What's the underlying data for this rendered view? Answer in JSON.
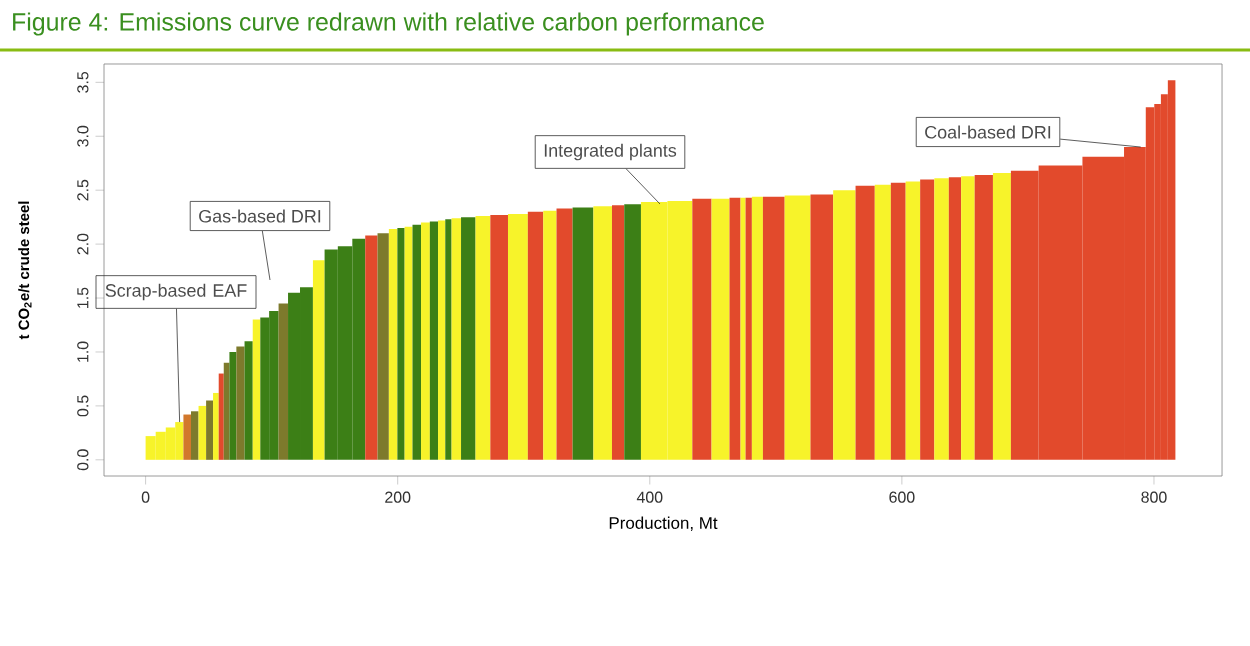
{
  "chart_data": {
    "type": "bar",
    "title": "Figure 4: Emissions curve redrawn with relative carbon performance",
    "xlabel": "Production, Mt",
    "ylabel": "t CO$_{2}$e/t crude steel",
    "x": [
      4,
      12,
      20,
      27,
      33,
      39,
      45,
      51,
      56,
      60,
      64,
      69,
      75,
      82,
      88,
      94,
      102,
      109,
      117,
      128,
      137.5,
      146.5,
      158.5,
      169.5,
      179,
      189,
      197,
      202.5,
      208.5,
      215,
      222,
      229,
      235,
      240.5,
      245,
      255.5,
      268,
      279,
      296,
      310.5,
      320.5,
      331.5,
      346,
      364.5,
      375.5,
      384,
      402,
      426,
      441.5,
      456.5,
      470,
      474,
      478,
      484,
      495.5,
      518.5,
      536.5,
      554.5,
      572,
      585,
      597.5,
      608.5,
      620.5,
      631,
      643.5,
      650.5,
      665,
      679.5,
      693.5,
      723.5,
      763,
      789.5,
      797.5,
      803,
      808,
      814
    ],
    "values": [
      0.22,
      0.26,
      0.3,
      0.35,
      0.42,
      0.45,
      0.5,
      0.55,
      0.62,
      0.8,
      0.9,
      1.0,
      1.05,
      1.1,
      1.3,
      1.32,
      1.38,
      1.45,
      1.55,
      1.6,
      1.85,
      1.95,
      1.98,
      2.05,
      2.08,
      2.1,
      2.14,
      2.15,
      2.16,
      2.18,
      2.2,
      2.21,
      2.22,
      2.23,
      2.24,
      2.25,
      2.26,
      2.27,
      2.28,
      2.3,
      2.31,
      2.33,
      2.34,
      2.35,
      2.36,
      2.37,
      2.39,
      2.4,
      2.42,
      2.42,
      2.43,
      2.43,
      2.43,
      2.44,
      2.44,
      2.45,
      2.46,
      2.5,
      2.54,
      2.55,
      2.57,
      2.58,
      2.6,
      2.61,
      2.62,
      2.63,
      2.64,
      2.66,
      2.68,
      2.73,
      2.81,
      2.9,
      3.27,
      3.3,
      3.39,
      3.52
    ],
    "colors": [
      "#f7f32a",
      "#f7f32a",
      "#f7f32a",
      "#f7f32a",
      "#d2782c",
      "#7d7a2c",
      "#f7f32a",
      "#7d7a2c",
      "#f7f32a",
      "#e24a2c",
      "#7d7a2c",
      "#3c7f16",
      "#7d7a2c",
      "#3c7f16",
      "#f7f32a",
      "#3c7f16",
      "#3c7f16",
      "#7d7a2c",
      "#3c7f16",
      "#3c7f16",
      "#f7f32a",
      "#3c7f16",
      "#3c7f16",
      "#3c7f16",
      "#e24a2c",
      "#7d7a2c",
      "#f7f32a",
      "#3c7f16",
      "#f7f32a",
      "#3c7f16",
      "#f7f32a",
      "#3c7f16",
      "#f7f32a",
      "#3c7f16",
      "#f7f32a",
      "#3c7f16",
      "#f7f32a",
      "#e24a2c",
      "#f7f32a",
      "#e24a2c",
      "#f7f32a",
      "#e24a2c",
      "#3c7f16",
      "#f7f32a",
      "#e24a2c",
      "#3c7f16",
      "#f7f32a",
      "#f7f32a",
      "#e24a2c",
      "#f7f32a",
      "#e24a2c",
      "#f7f32a",
      "#e24a2c",
      "#f7f32a",
      "#e24a2c",
      "#f7f32a",
      "#e24a2c",
      "#f7f32a",
      "#e24a2c",
      "#f7f32a",
      "#e24a2c",
      "#f7f32a",
      "#e24a2c",
      "#f7f32a",
      "#e24a2c",
      "#f7f32a",
      "#e24a2c",
      "#f7f32a",
      "#e24a2c",
      "#e24a2c",
      "#e24a2c",
      "#e24a2c",
      "#e24a2c",
      "#e24a2c",
      "#e24a2c",
      "#e24a2c"
    ],
    "xlim": [
      -33,
      854
    ],
    "ylim": [
      -0.15,
      3.67
    ],
    "xticks": [
      0,
      200,
      400,
      600,
      800
    ],
    "yticks": [
      {
        "value": 0,
        "label": "0.0"
      },
      {
        "value": 0.5,
        "label": "0.5"
      },
      {
        "value": 1,
        "label": "1.0"
      },
      {
        "value": 1.5,
        "label": "1.5"
      },
      {
        "value": 2,
        "label": "2.0"
      },
      {
        "value": 2.5,
        "label": "2.5"
      },
      {
        "value": 3,
        "label": "3.0"
      },
      {
        "value": 3.5,
        "label": "3.5"
      }
    ],
    "annotations": [
      {
        "text": "Scrap-based EAF",
        "x": 27,
        "y": 0.35
      },
      "Gas-based DRI",
      "Integrated plants",
      {
        "text": "Coal-based DRI",
        "x": 789.5,
        "y": 2.9
      }
    ]
  }
}
